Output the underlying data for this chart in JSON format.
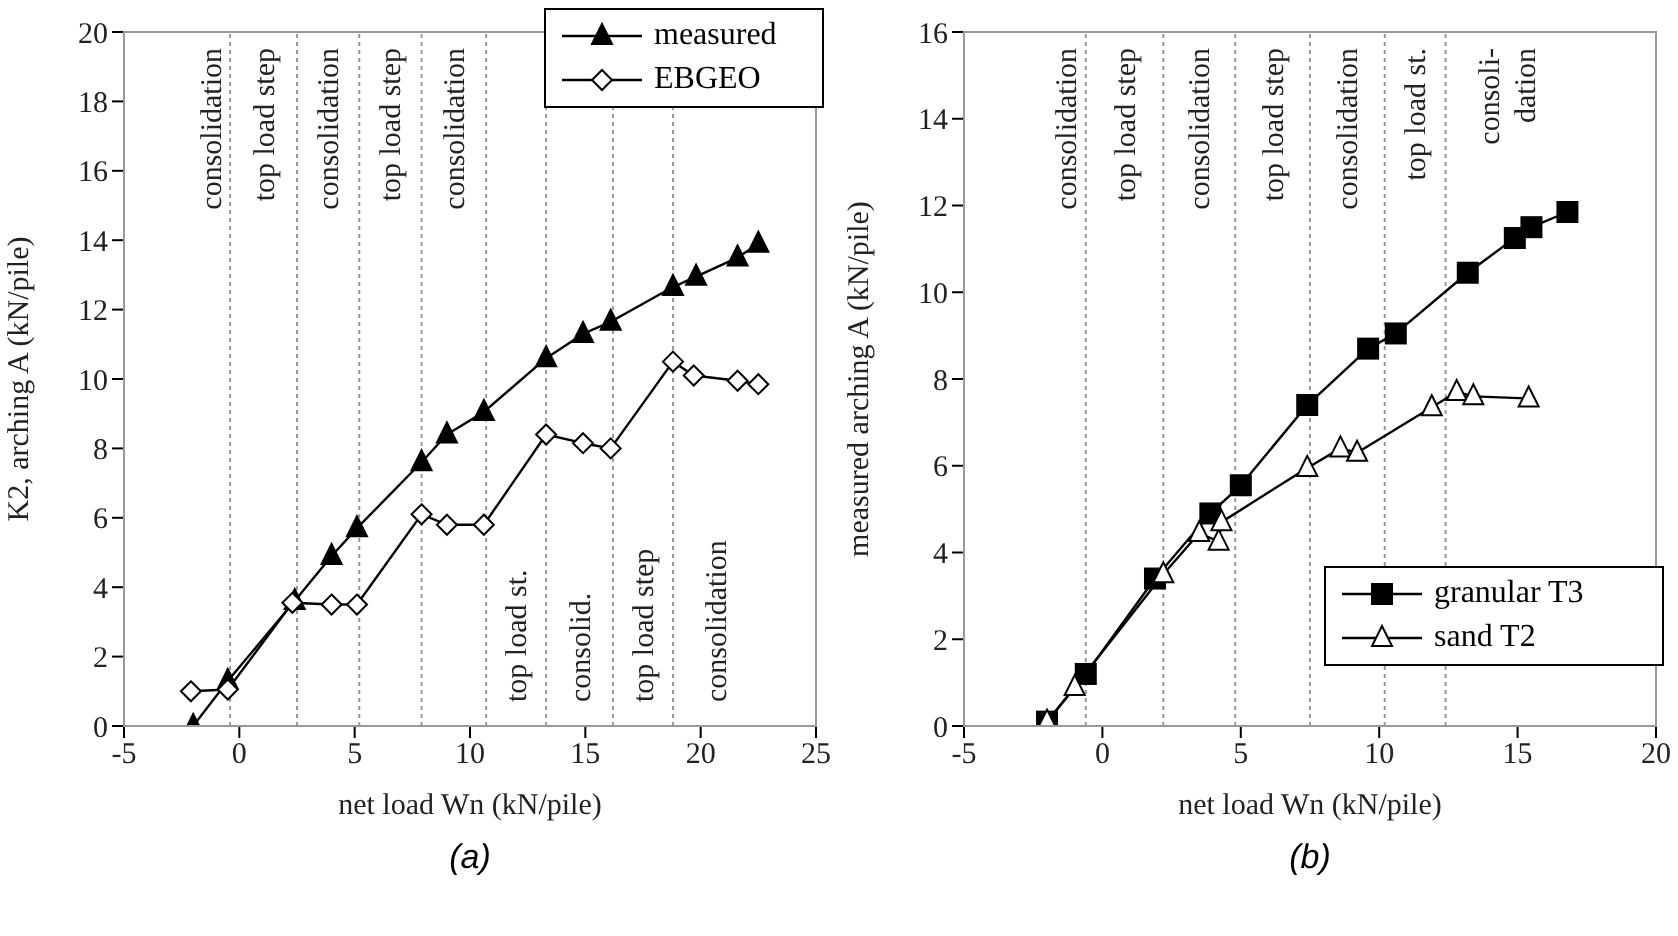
{
  "chart_data": [
    {
      "type": "line",
      "title": "(a)",
      "xlabel": "net load Wn (kN/pile)",
      "ylabel": "K2, arching A (kN/pile)",
      "xlim": [
        -5,
        25
      ],
      "xticks": [
        -5,
        0,
        5,
        10,
        15,
        20,
        25
      ],
      "ylim": [
        0,
        20
      ],
      "yticks": [
        0,
        2,
        4,
        6,
        8,
        10,
        12,
        14,
        16,
        18,
        20
      ],
      "legend": "top right",
      "series": [
        {
          "name": "measured",
          "color": "#000000",
          "marker": "triangle",
          "x": [
            -2.0,
            -0.5,
            2.4,
            4.0,
            5.1,
            7.9,
            9.0,
            10.6,
            13.3,
            14.9,
            16.1,
            18.8,
            19.8,
            21.6,
            22.5
          ],
          "values": [
            0,
            1.3,
            3.6,
            4.9,
            5.7,
            7.6,
            8.4,
            9.05,
            10.6,
            11.3,
            11.65,
            12.65,
            12.95,
            13.5,
            13.9
          ]
        },
        {
          "name": "EBGEO",
          "color": "#000000",
          "marker": "diamond",
          "x": [
            -2.1,
            -0.5,
            2.3,
            4.0,
            5.1,
            7.9,
            9.0,
            10.6,
            13.3,
            14.9,
            16.1,
            18.8,
            19.7,
            21.6,
            22.5
          ],
          "values": [
            1.0,
            1.05,
            3.55,
            3.5,
            3.5,
            6.1,
            5.8,
            5.8,
            8.4,
            8.15,
            8.0,
            10.5,
            10.1,
            9.95,
            9.85
          ]
        }
      ],
      "ref_lines": [
        {
          "axis": "x",
          "value": -0.4,
          "line_style": "dotted",
          "color": "#999999"
        },
        {
          "axis": "x",
          "value": 2.5,
          "line_style": "dotted",
          "color": "#999999"
        },
        {
          "axis": "x",
          "value": 5.2,
          "line_style": "dotted",
          "color": "#999999"
        },
        {
          "axis": "x",
          "value": 7.9,
          "line_style": "dotted",
          "color": "#999999"
        },
        {
          "axis": "x",
          "value": 10.7,
          "line_style": "dotted",
          "color": "#999999"
        },
        {
          "axis": "x",
          "value": 13.3,
          "line_style": "dotted",
          "color": "#999999"
        },
        {
          "axis": "x",
          "value": 16.2,
          "line_style": "dotted",
          "color": "#999999"
        },
        {
          "axis": "x",
          "value": 18.8,
          "line_style": "dotted",
          "color": "#999999"
        }
      ],
      "annotations": [
        "consolidation",
        "top load step",
        "consolidation",
        "top load step",
        "consolidation",
        "top load st.",
        "consolid.",
        "top load step",
        "consolidation"
      ],
      "grid": false
    },
    {
      "type": "line",
      "title": "(b)",
      "xlabel": "net load Wn (kN/pile)",
      "ylabel": "measured arching A (kN/pile)",
      "xlim": [
        -5,
        20
      ],
      "xticks": [
        -5,
        0,
        5,
        10,
        15,
        20
      ],
      "ylim": [
        0,
        16
      ],
      "yticks": [
        0,
        2,
        4,
        6,
        8,
        10,
        12,
        14,
        16
      ],
      "legend": "bottom right",
      "series": [
        {
          "name": "granular T3",
          "color": "#000000",
          "marker": "square",
          "x": [
            -2.0,
            -0.6,
            1.9,
            3.9,
            5.0,
            7.4,
            9.6,
            10.6,
            13.2,
            14.9,
            15.5,
            16.8
          ],
          "values": [
            0.1,
            1.2,
            3.4,
            4.9,
            5.55,
            7.4,
            8.7,
            9.05,
            10.45,
            11.25,
            11.5,
            11.85
          ]
        },
        {
          "name": "sand T2",
          "color": "#000000",
          "marker": "triangle",
          "x": [
            -2.0,
            -1.0,
            2.2,
            3.5,
            4.2,
            4.3,
            7.4,
            8.6,
            9.2,
            11.9,
            12.8,
            13.4,
            15.4
          ],
          "values": [
            0.1,
            0.9,
            3.5,
            4.45,
            4.25,
            4.7,
            5.95,
            6.4,
            6.3,
            7.35,
            7.7,
            7.6,
            7.55
          ]
        }
      ],
      "ref_lines": [
        {
          "axis": "x",
          "value": -0.6,
          "line_style": "dotted",
          "color": "#999999"
        },
        {
          "axis": "x",
          "value": 2.2,
          "line_style": "dotted",
          "color": "#999999"
        },
        {
          "axis": "x",
          "value": 4.8,
          "line_style": "dotted",
          "color": "#999999"
        },
        {
          "axis": "x",
          "value": 7.5,
          "line_style": "dotted",
          "color": "#999999"
        },
        {
          "axis": "x",
          "value": 10.2,
          "line_style": "dotted",
          "color": "#999999"
        },
        {
          "axis": "x",
          "value": 12.4,
          "line_style": "dotted",
          "color": "#999999"
        }
      ],
      "annotations": [
        "consolidation",
        "top load step",
        "consolidation",
        "top load step",
        "consolidation",
        "top load st.",
        "consoli-\ndation"
      ],
      "grid": false
    }
  ]
}
